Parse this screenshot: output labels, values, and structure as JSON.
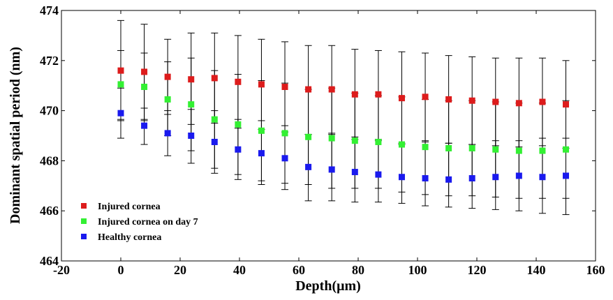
{
  "chart_data": {
    "type": "scatter",
    "title": "",
    "xlabel": "Depth(μm)",
    "ylabel": "Dominant spatial period (nm)",
    "xlim": [
      -20,
      160
    ],
    "ylim": [
      464,
      474
    ],
    "xticks": [
      -20,
      0,
      20,
      40,
      60,
      80,
      100,
      120,
      140,
      160
    ],
    "yticks": [
      464,
      466,
      468,
      470,
      472,
      474
    ],
    "grid": false,
    "legend_position": "bottom-left",
    "x": [
      0,
      7.9,
      15.8,
      23.7,
      31.6,
      39.5,
      47.4,
      55.3,
      63.2,
      71.1,
      78.9,
      86.8,
      94.7,
      102.6,
      110.5,
      118.4,
      126.3,
      134.2,
      142.1,
      150
    ],
    "series": [
      {
        "name": "Injured cornea",
        "color": "#dd1c1c",
        "values": [
          471.6,
          471.55,
          471.35,
          471.25,
          471.3,
          471.15,
          471.05,
          470.95,
          470.85,
          470.85,
          470.65,
          470.65,
          470.5,
          470.55,
          470.45,
          470.4,
          470.35,
          470.3,
          470.35,
          470.25
        ],
        "err_upper": [
          473.6,
          473.45,
          472.85,
          473.1,
          473.1,
          473.0,
          472.85,
          472.75,
          472.6,
          472.6,
          472.45,
          472.4,
          472.35,
          472.3,
          472.2,
          472.15,
          472.1,
          472.1,
          472.1,
          472.0
        ],
        "err_lower": [
          469.6,
          469.65,
          469.85,
          469.45,
          469.5,
          469.3,
          469.25,
          469.15,
          469.05,
          469.05,
          468.85,
          468.85,
          468.65,
          468.8,
          468.7,
          468.65,
          468.6,
          468.55,
          468.6,
          468.5
        ]
      },
      {
        "name": "Injured cornea on day 7",
        "color": "#33f033",
        "values": [
          471.05,
          470.95,
          470.45,
          470.25,
          469.65,
          469.45,
          469.2,
          469.1,
          468.95,
          468.9,
          468.8,
          468.75,
          468.65,
          468.55,
          468.5,
          468.5,
          468.45,
          468.4,
          468.4,
          468.45
        ],
        "err_upper": [
          472.4,
          472.3,
          471.95,
          472.1,
          471.6,
          471.45,
          471.2,
          471.1,
          470.85,
          470.9,
          470.7,
          470.6,
          470.55,
          470.45,
          470.4,
          470.4,
          470.35,
          470.3,
          470.3,
          470.4
        ],
        "err_lower": [
          469.65,
          469.6,
          469.0,
          468.4,
          467.7,
          467.45,
          467.2,
          467.1,
          467.05,
          466.9,
          466.9,
          466.9,
          466.75,
          466.65,
          466.6,
          466.6,
          466.55,
          466.5,
          466.5,
          466.5
        ]
      },
      {
        "name": "Healthy cornea",
        "color": "#1a1aee",
        "values": [
          469.9,
          469.4,
          469.1,
          469.0,
          468.75,
          468.45,
          468.3,
          468.1,
          467.75,
          467.65,
          467.55,
          467.45,
          467.35,
          467.3,
          467.25,
          467.3,
          467.35,
          467.4,
          467.35,
          467.4
        ],
        "err_upper": [
          470.9,
          470.1,
          470.0,
          470.05,
          470.0,
          469.65,
          469.6,
          469.4,
          469.05,
          469.1,
          468.95,
          468.8,
          468.7,
          468.75,
          468.7,
          468.65,
          468.8,
          468.8,
          468.9,
          468.9
        ],
        "err_lower": [
          468.9,
          468.65,
          468.2,
          467.9,
          467.5,
          467.25,
          467.05,
          466.85,
          466.4,
          466.4,
          466.35,
          466.35,
          466.3,
          466.2,
          466.15,
          466.1,
          466.05,
          466.0,
          465.9,
          465.85
        ]
      }
    ]
  }
}
